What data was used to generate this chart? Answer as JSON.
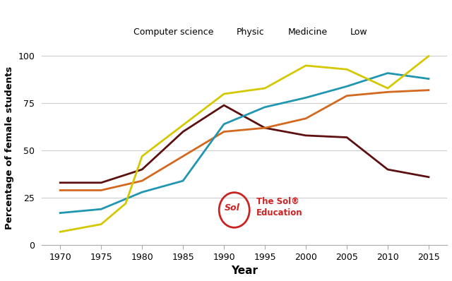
{
  "years": [
    1970,
    1975,
    1978,
    1980,
    1985,
    1990,
    1995,
    2000,
    2005,
    2010,
    2015
  ],
  "computer_science": [
    33,
    33,
    null,
    40,
    60,
    74,
    62,
    58,
    57,
    40,
    36
  ],
  "physic": [
    29,
    29,
    null,
    34,
    47,
    60,
    62,
    67,
    79,
    81,
    82
  ],
  "medicine": [
    17,
    19,
    null,
    28,
    34,
    64,
    73,
    78,
    84,
    91,
    88
  ],
  "low": [
    7,
    11,
    22,
    47,
    null,
    80,
    83,
    95,
    93,
    83,
    100
  ],
  "colors": {
    "computer_science": "#5c1010",
    "physic": "#d2691e",
    "medicine": "#2196b0",
    "low": "#d4c800"
  },
  "ylabel": "Percentage of female students",
  "xlabel": "Year",
  "ylim": [
    0,
    103
  ],
  "yticks": [
    0,
    25,
    50,
    75,
    100
  ],
  "xticks": [
    1970,
    1975,
    1980,
    1985,
    1990,
    1995,
    2000,
    2005,
    2010,
    2015
  ],
  "legend_labels": [
    "Computer science",
    "Physic",
    "Medicine",
    "Low"
  ],
  "background_color": "#ffffff"
}
